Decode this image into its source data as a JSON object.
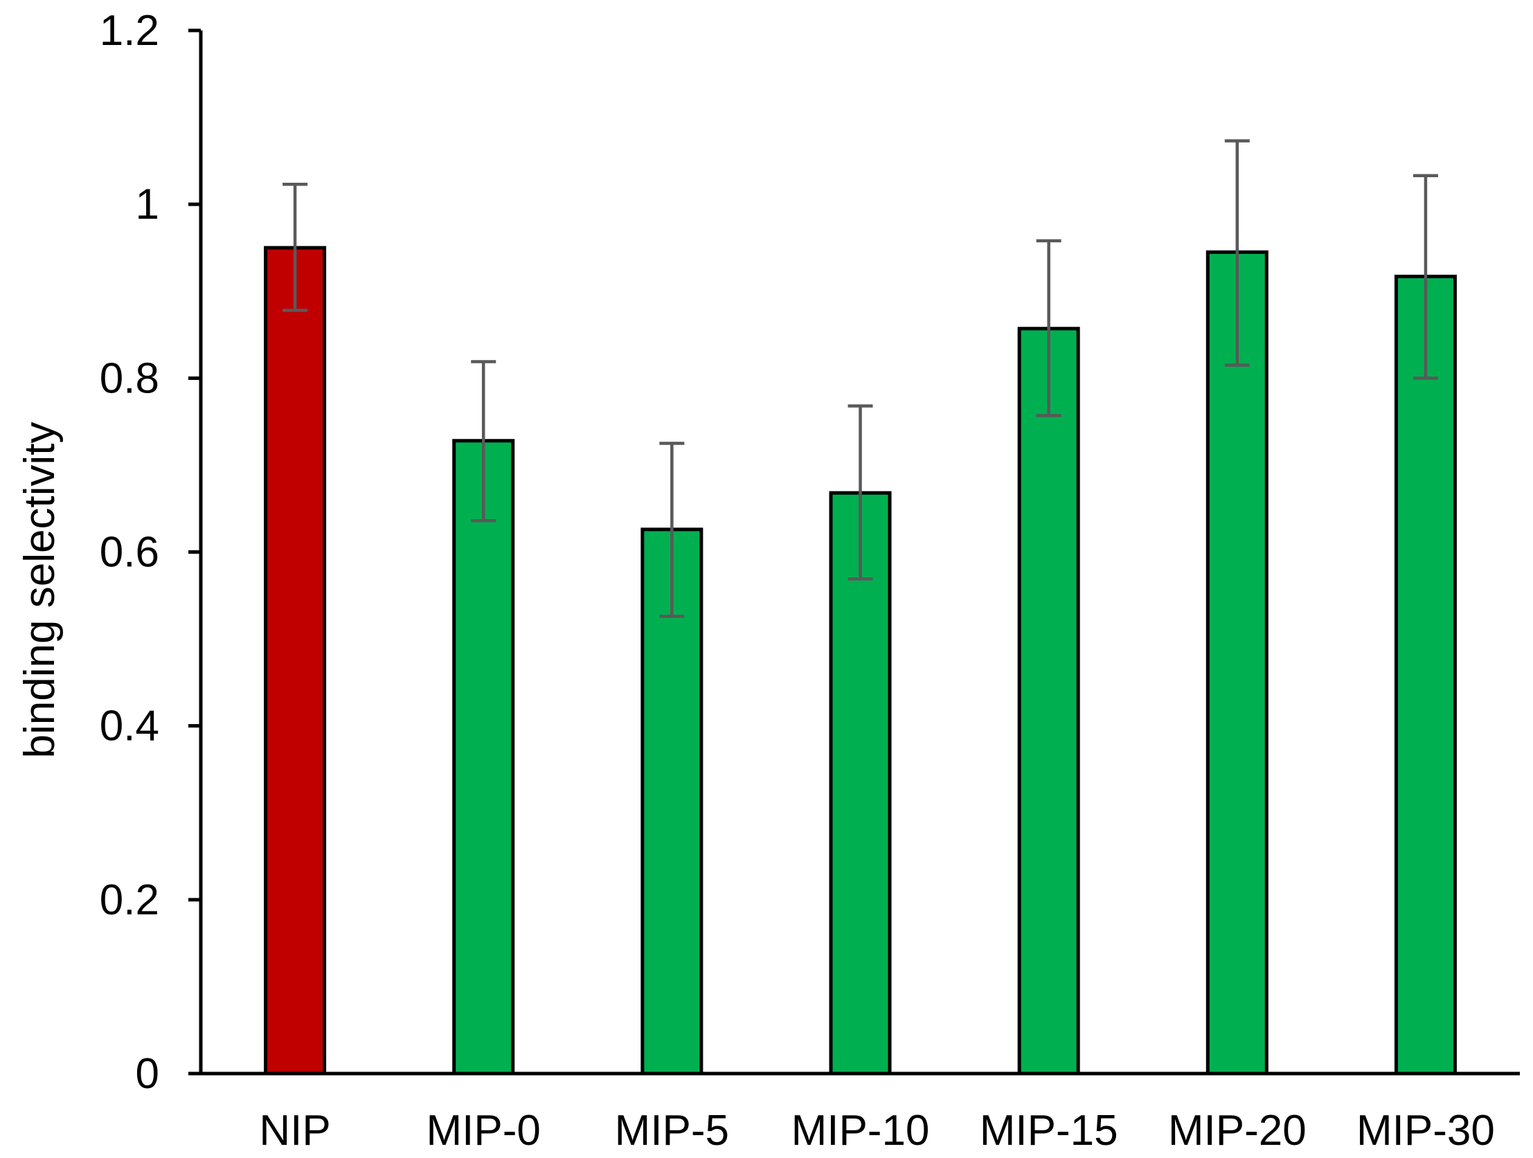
{
  "chart_data": {
    "type": "bar",
    "title": "",
    "xlabel": "",
    "ylabel": "binding selectivity",
    "ylim": [
      0,
      1.2
    ],
    "yticks": [
      "0",
      "0.2",
      "0.4",
      "0.6",
      "0.8",
      "1",
      "1.2"
    ],
    "categories": [
      "NIP",
      "MIP-0",
      "MIP-5",
      "MIP-10",
      "MIP-15",
      "MIP-20",
      "MIP-30"
    ],
    "values": [
      0.95,
      0.728,
      0.626,
      0.668,
      0.857,
      0.945,
      0.917
    ],
    "error_low": [
      0.878,
      0.636,
      0.526,
      0.569,
      0.757,
      0.815,
      0.8
    ],
    "error_high": [
      1.023,
      0.819,
      0.725,
      0.768,
      0.958,
      1.073,
      1.033
    ],
    "bar_colors": [
      "#C00000",
      "#00B050",
      "#00B050",
      "#00B050",
      "#00B050",
      "#00B050",
      "#00B050"
    ],
    "bar_edge_color": "#000000",
    "error_bar_color": "#595959",
    "grid": false,
    "legend": "none"
  }
}
